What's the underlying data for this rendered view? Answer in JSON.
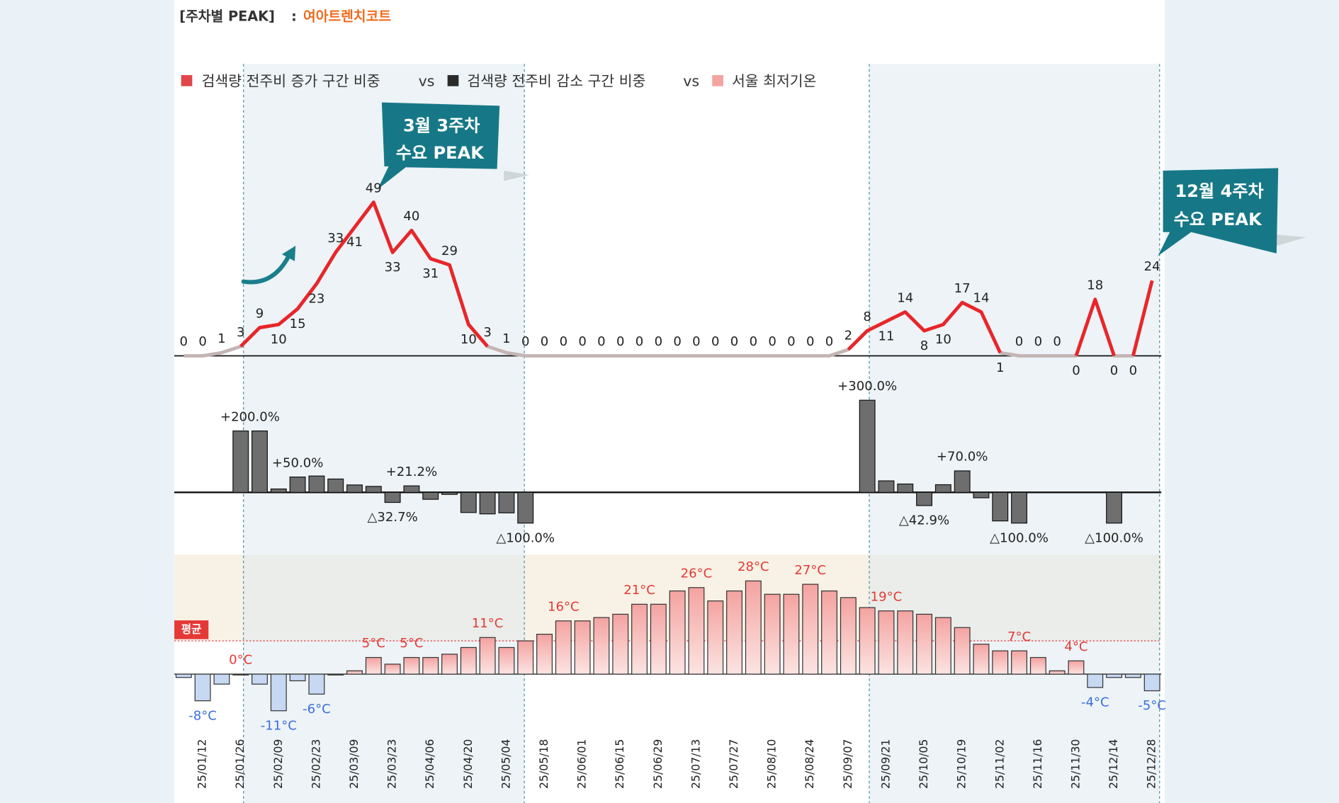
{
  "header": {
    "title": "[주차별 PEAK]",
    "separator": ":",
    "product": "여아트렌치코트"
  },
  "legend": {
    "items": [
      {
        "name": "검색량 전주비 증가 구간 비중",
        "color": "#e0474a"
      },
      {
        "name": "검색량 전주비 감소 구간 비중",
        "color": "#2b2b2b"
      },
      {
        "name": "서울 최저기온",
        "color": "#f4a3a0"
      }
    ],
    "separator": "vs"
  },
  "annotations": [
    {
      "line1": "3월 3주차",
      "line2": "수요 PEAK"
    },
    {
      "line1": "12월 4주차",
      "line2": "수요 PEAK"
    }
  ],
  "chart_data": [
    {
      "type": "line",
      "values": [
        0,
        0,
        1,
        3,
        9,
        10,
        15,
        23,
        33,
        41,
        49,
        33,
        40,
        31,
        29,
        10,
        3,
        1,
        0,
        0,
        0,
        0,
        0,
        0,
        0,
        0,
        0,
        0,
        0,
        0,
        0,
        0,
        0,
        0,
        0,
        2,
        8,
        11,
        14,
        8,
        10,
        17,
        14,
        1,
        0,
        0,
        0,
        0,
        18,
        0,
        0,
        24
      ],
      "color": "#e8262a",
      "low_color": "#c4b4b4"
    },
    {
      "type": "bar",
      "values": [
        null,
        null,
        null,
        200,
        200,
        11.1,
        50,
        53.3,
        43.5,
        24.2,
        19.5,
        -32.7,
        21.2,
        -22.5,
        -6.5,
        -65.5,
        -70,
        -66.7,
        -100,
        null,
        null,
        null,
        null,
        null,
        null,
        null,
        null,
        null,
        null,
        null,
        null,
        null,
        null,
        null,
        null,
        null,
        300,
        37.5,
        27.3,
        -42.9,
        25,
        70,
        -17.6,
        -92.9,
        -100,
        null,
        null,
        null,
        null,
        -100,
        null,
        null
      ],
      "value_labels": [
        null,
        null,
        null,
        "+200.0%",
        null,
        null,
        "+50.0%",
        null,
        null,
        null,
        null,
        "△32.7%",
        "+21.2%",
        null,
        null,
        null,
        null,
        null,
        "△100.0%",
        null,
        null,
        null,
        null,
        null,
        null,
        null,
        null,
        null,
        null,
        null,
        null,
        null,
        null,
        null,
        null,
        null,
        "+300.0%",
        null,
        null,
        "△42.9%",
        null,
        "+70.0%",
        null,
        null,
        "△100.0%",
        null,
        null,
        null,
        null,
        "△100.0%",
        null,
        null
      ],
      "color": "#6e6e6e"
    },
    {
      "type": "bar",
      "categories": [
        null,
        "25/01/12",
        null,
        "25/01/26",
        null,
        "25/02/09",
        null,
        "25/02/23",
        null,
        "25/03/09",
        null,
        "25/03/23",
        null,
        "25/04/06",
        null,
        "25/04/20",
        null,
        "25/05/04",
        null,
        "25/05/18",
        null,
        "25/06/01",
        null,
        "25/06/15",
        null,
        "25/06/29",
        null,
        "25/07/13",
        null,
        "25/07/27",
        null,
        "25/08/10",
        null,
        "25/08/24",
        null,
        "25/09/07",
        null,
        "25/09/21",
        null,
        "25/10/05",
        null,
        "25/10/19",
        null,
        "25/11/02",
        null,
        "25/11/16",
        null,
        "25/11/30",
        null,
        "25/12/14",
        null,
        "25/12/28"
      ],
      "values": [
        -1,
        -8,
        -3,
        0,
        -3,
        -11,
        -2,
        -6,
        0,
        1,
        5,
        3,
        5,
        5,
        6,
        8,
        11,
        8,
        10,
        12,
        16,
        16,
        17,
        18,
        21,
        21,
        25,
        26,
        22,
        25,
        28,
        24,
        24,
        27,
        25,
        23,
        20,
        19,
        19,
        18,
        17,
        14,
        9,
        7,
        7,
        5,
        1,
        4,
        -4,
        -1,
        -1,
        -5
      ],
      "value_labels": [
        null,
        "-8°C",
        null,
        "0°C",
        null,
        "-11°C",
        null,
        "-6°C",
        null,
        null,
        "5°C",
        null,
        "5°C",
        null,
        null,
        null,
        "11°C",
        null,
        null,
        null,
        "16°C",
        null,
        null,
        null,
        "21°C",
        null,
        null,
        "26°C",
        null,
        null,
        "28°C",
        null,
        null,
        "27°C",
        null,
        null,
        null,
        "19°C",
        null,
        null,
        null,
        null,
        null,
        null,
        "7°C",
        null,
        null,
        "4°C",
        "-4°C",
        null,
        null,
        "-5°C"
      ],
      "positive_color": "#f4a3a0",
      "negative_color": "#c6d8f2",
      "positive_label_color": "#e53935",
      "negative_label_color": "#3a6fe0",
      "average": {
        "label": "평균",
        "value": 10,
        "color": "#e53935"
      }
    }
  ]
}
